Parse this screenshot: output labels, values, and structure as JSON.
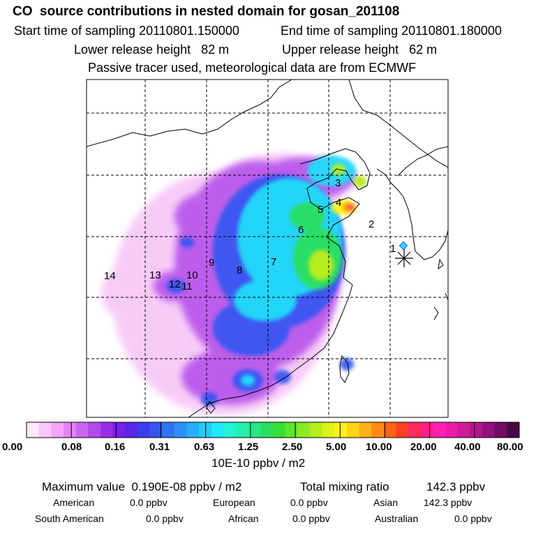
{
  "header": {
    "title": "CO  source contributions in nested domain for gosan_201108",
    "start_time": "Start time of sampling 20110801.150000",
    "end_time": "End time of sampling 20110801.180000",
    "lower_height": "Lower release height   82 m",
    "upper_height": "Upper release height   62 m",
    "tracer_note": "Passive tracer used, meteorological data are from ECMWF"
  },
  "map": {
    "region_labels": [
      "1",
      "2",
      "3",
      "4",
      "5",
      "6",
      "7",
      "8",
      "9",
      "10",
      "11",
      "12",
      "13",
      "14"
    ],
    "receptor_marker": "star-marker"
  },
  "colorbar": {
    "colors": [
      "#fde7fd",
      "#f9c8f9",
      "#f3a6f6",
      "#e583f4",
      "#cc66f0",
      "#b24bea",
      "#9a2ee8",
      "#7a1fe6",
      "#5a26e8",
      "#3e3cf0",
      "#3356f2",
      "#2f74f4",
      "#2b91f6",
      "#27aef8",
      "#22ccfa",
      "#1ee8fc",
      "#22f2d6",
      "#23efb0",
      "#26e888",
      "#2bdf5e",
      "#35e132",
      "#5fe62a",
      "#8cea24",
      "#b5ee1f",
      "#dcf21b",
      "#fff21a",
      "#ffd417",
      "#ffb115",
      "#ff8b13",
      "#ff6412",
      "#ff3f24",
      "#ff2a5e",
      "#ff1e8a",
      "#ff1fb1",
      "#ea1ca8",
      "#cf1a9a",
      "#b2158a",
      "#92117a",
      "#700d62",
      "#4b0846"
    ],
    "tick_labels": [
      "0.00",
      "0.08",
      "0.16",
      "0.31",
      "0.63",
      "1.25",
      "2.50",
      "5.00",
      "10.00",
      "20.00",
      "40.00",
      "80.00"
    ],
    "unit_label": "10E-10 ppbv / m2"
  },
  "summary": {
    "max_value": "Maximum value  0.190E-08 ppbv / m2",
    "total_mixing": "Total mixing ratio",
    "total_value": "142.3 ppbv",
    "american_label": "American",
    "american_value": "0.0 ppbv",
    "european_label": "European",
    "european_value": "0.0 ppbv",
    "asian_label": "Asian",
    "asian_value": "142.3 ppbv",
    "south_american_label": "South American",
    "south_american_value": "0.0 ppbv",
    "african_label": "African",
    "african_value": "0.0 ppbv",
    "australian_label": "Australian",
    "australian_value": "0.0 ppbv"
  }
}
